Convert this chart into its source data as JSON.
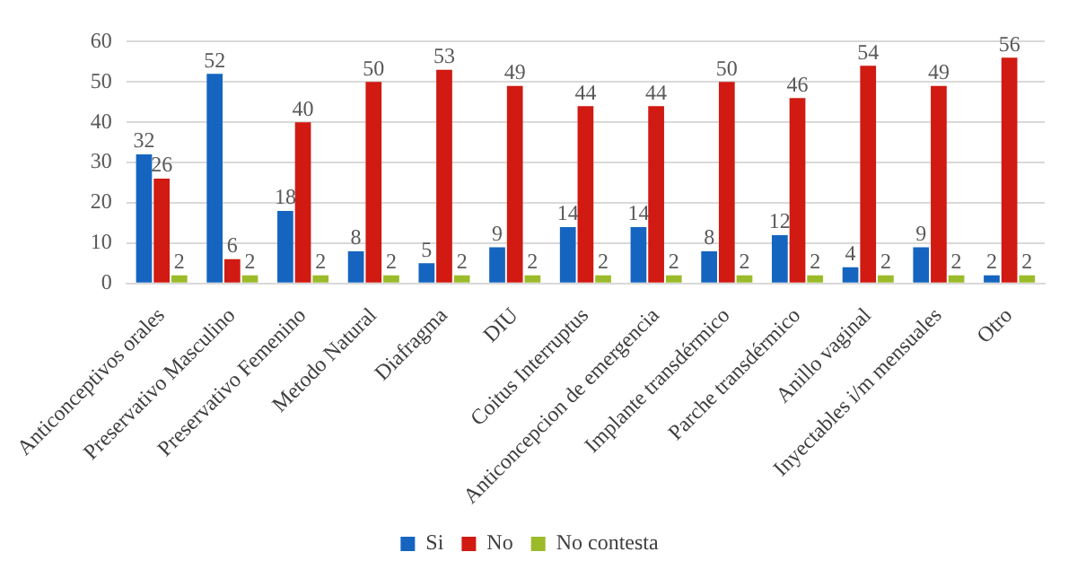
{
  "chart_data": {
    "type": "bar",
    "categories": [
      "Anticonceptivos orales",
      "Preservativo Masculino",
      "Preservativo Femenino",
      "Metodo Natural",
      "Diafragma",
      "DIU",
      "Coitus Interruptus",
      "Anticoncepcion de emergencia",
      "Implante transdérmico",
      "Parche transdérmico",
      "Anillo vaginal",
      "Inyectables i/m mensuales",
      "Otro"
    ],
    "series": [
      {
        "name": "Si",
        "color": "#1565c0",
        "values": [
          32,
          52,
          18,
          8,
          5,
          9,
          14,
          14,
          8,
          12,
          4,
          9,
          2
        ]
      },
      {
        "name": "No",
        "color": "#d01a12",
        "values": [
          26,
          6,
          40,
          50,
          53,
          49,
          44,
          44,
          50,
          46,
          54,
          49,
          56
        ]
      },
      {
        "name": "No contesta",
        "color": "#9bbb2a",
        "values": [
          2,
          2,
          2,
          2,
          2,
          2,
          2,
          2,
          2,
          2,
          2,
          2,
          2
        ]
      }
    ],
    "ylim": [
      0,
      60
    ],
    "yticks": [
      0,
      10,
      20,
      30,
      40,
      50,
      60
    ],
    "grid": "y",
    "legend": "bottom",
    "data_labels": true
  }
}
